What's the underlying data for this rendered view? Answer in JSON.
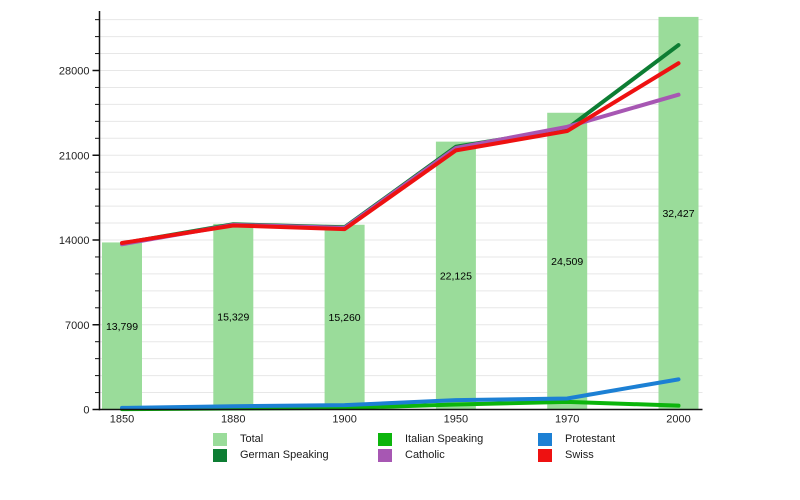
{
  "chart_data": {
    "type": "bar",
    "subtype": "bar-line-combo-population-chart",
    "x_categories": [
      "1850",
      "1880",
      "1900",
      "1950",
      "1970",
      "2000"
    ],
    "bar_series": {
      "name": "Total",
      "color": "#9adc9a",
      "values": [
        13799,
        15329,
        15260,
        22125,
        24509,
        32427
      ],
      "value_labels": [
        "13,799",
        "15,329",
        "15,260",
        "22,125",
        "24,509",
        "32,427"
      ]
    },
    "line_series": [
      {
        "name": "German Speaking",
        "color": "#0d7d33",
        "values": [
          13720,
          15300,
          15050,
          21700,
          23200,
          30100
        ]
      },
      {
        "name": "Catholic",
        "color": "#a757b3",
        "values": [
          13650,
          15250,
          15000,
          21600,
          23350,
          26000
        ]
      },
      {
        "name": "Italian Speaking",
        "color": "#0cb50c",
        "values": [
          30,
          80,
          130,
          410,
          630,
          320
        ]
      },
      {
        "name": "Protestant",
        "color": "#1c80d4",
        "values": [
          130,
          270,
          360,
          770,
          910,
          2490
        ]
      },
      {
        "name": "Swiss",
        "color": "#ee1111",
        "values": [
          13750,
          15200,
          14900,
          21400,
          23000,
          28600
        ]
      }
    ],
    "y_axis": {
      "min": 0,
      "max": 32500,
      "major_step": 7000,
      "minor_step": 1400,
      "major_tick_labels": [
        "0",
        "7000",
        "14000",
        "21000",
        "28000"
      ]
    },
    "grid": "horizontal-only",
    "legend_position": "bottom",
    "legend_columns": [
      [
        {
          "label": "Total",
          "color": "#9adc9a"
        },
        {
          "label": "German Speaking",
          "color": "#0d7d33"
        }
      ],
      [
        {
          "label": "Italian Speaking",
          "color": "#0cb50c"
        },
        {
          "label": "Catholic",
          "color": "#a757b3"
        }
      ],
      [
        {
          "label": "Protestant",
          "color": "#1c80d4"
        },
        {
          "label": "Swiss",
          "color": "#ee1111"
        }
      ]
    ],
    "colors": {
      "axis": "#111111",
      "gridline": "#e7e7e7",
      "tick_label": "#222222",
      "bar_value_label": "#000000"
    }
  }
}
